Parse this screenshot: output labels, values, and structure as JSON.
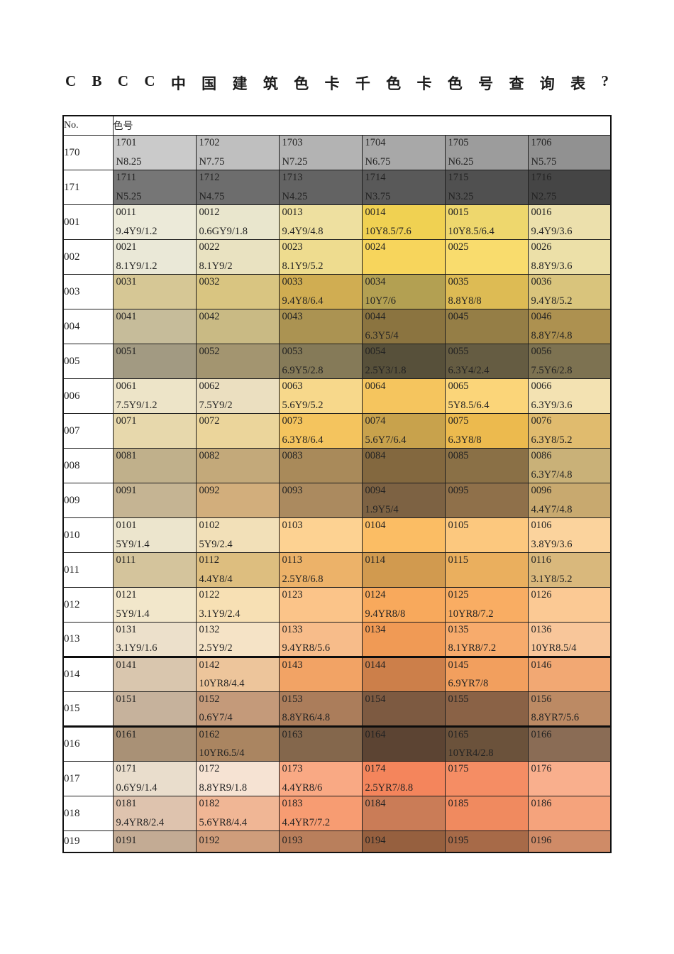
{
  "page": {
    "title_chars": "CBCC中国建筑色卡千色卡色号查询表?"
  },
  "table": {
    "header": {
      "no_label": "No.",
      "color_label": "色号"
    },
    "rows": [
      {
        "no": "170",
        "cells": [
          {
            "code": "1701",
            "munsell": "N8.25",
            "bg": "#cacaca"
          },
          {
            "code": "1702",
            "munsell": "N7.75",
            "bg": "#bfbfbf"
          },
          {
            "code": "1703",
            "munsell": "N7.25",
            "bg": "#b3b3b3"
          },
          {
            "code": "1704",
            "munsell": "N6.75",
            "bg": "#a8a8a8"
          },
          {
            "code": "1705",
            "munsell": "N6.25",
            "bg": "#9c9c9c"
          },
          {
            "code": "1706",
            "munsell": "N5.75",
            "bg": "#919191"
          }
        ]
      },
      {
        "no": "171",
        "cells": [
          {
            "code": "1711",
            "munsell": "N5.25",
            "bg": "#767676"
          },
          {
            "code": "1712",
            "munsell": "N4.75",
            "bg": "#6d6d6d"
          },
          {
            "code": "1713",
            "munsell": "N4.25",
            "bg": "#636363"
          },
          {
            "code": "1714",
            "munsell": "N3.75",
            "bg": "#595959"
          },
          {
            "code": "1715",
            "munsell": "N3.25",
            "bg": "#505050"
          },
          {
            "code": "1716",
            "munsell": "N2.75",
            "bg": "#454545"
          }
        ]
      },
      {
        "no": "001",
        "cells": [
          {
            "code": "0011",
            "munsell": "9.4Y9/1.2",
            "bg": "#ecead9"
          },
          {
            "code": "0012",
            "munsell": "0.6GY9/1.8",
            "bg": "#e9e6cd"
          },
          {
            "code": "0013",
            "munsell": "9.4Y9/4.8",
            "bg": "#eee0a0"
          },
          {
            "code": "0014",
            "munsell": "10Y8.5/7.6",
            "bg": "#f0d152"
          },
          {
            "code": "0015",
            "munsell": "10Y8.5/6.4",
            "bg": "#eed76d"
          },
          {
            "code": "0016",
            "munsell": "9.4Y9/3.6",
            "bg": "#ece0ac"
          }
        ]
      },
      {
        "no": "002",
        "cells": [
          {
            "code": "0021",
            "munsell": "8.1Y9/1.2",
            "bg": "#eae8d7"
          },
          {
            "code": "0022",
            "munsell": "8.1Y9/2",
            "bg": "#e9e2c1"
          },
          {
            "code": "0023",
            "munsell": "8.1Y9/5.2",
            "bg": "#eedc8f"
          },
          {
            "code": "0024",
            "munsell": "",
            "bg": "#f7d55c"
          },
          {
            "code": "0025",
            "munsell": "",
            "bg": "#f9dc6d"
          },
          {
            "code": "0026",
            "munsell": "8.8Y9/3.6",
            "bg": "#ece0a8"
          }
        ]
      },
      {
        "no": "003",
        "cells": [
          {
            "code": "0031",
            "munsell": "",
            "bg": "#d6c795"
          },
          {
            "code": "0032",
            "munsell": "",
            "bg": "#d9c581"
          },
          {
            "code": "0033",
            "munsell": "9.4Y8/6.4",
            "bg": "#d0ad52"
          },
          {
            "code": "0034",
            "munsell": "10Y7/6",
            "bg": "#b3a052"
          },
          {
            "code": "0035",
            "munsell": "8.8Y8/8",
            "bg": "#ddbb54"
          },
          {
            "code": "0036",
            "munsell": "9.4Y8/5.2",
            "bg": "#d9c47c"
          }
        ]
      },
      {
        "no": "004",
        "cells": [
          {
            "code": "0041",
            "munsell": "",
            "bg": "#c6bc9a"
          },
          {
            "code": "0042",
            "munsell": "",
            "bg": "#c9ba84"
          },
          {
            "code": "0043",
            "munsell": "",
            "bg": "#ab9352"
          },
          {
            "code": "0044",
            "munsell": "6.3Y5/4",
            "bg": "#8b7440"
          },
          {
            "code": "0045",
            "munsell": "",
            "bg": "#957e46"
          },
          {
            "code": "0046",
            "munsell": "8.8Y7/4.8",
            "bg": "#ad9150"
          }
        ]
      },
      {
        "no": "005",
        "cells": [
          {
            "code": "0051",
            "munsell": "",
            "bg": "#a29a82"
          },
          {
            "code": "0052",
            "munsell": "",
            "bg": "#a39570"
          },
          {
            "code": "0053",
            "munsell": "6.9Y5/2.8",
            "bg": "#857a58"
          },
          {
            "code": "0054",
            "munsell": "2.5Y3/1.8",
            "bg": "#57503a"
          },
          {
            "code": "0055",
            "munsell": "6.3Y4/2.4",
            "bg": "#655c42"
          },
          {
            "code": "0056",
            "munsell": "7.5Y6/2.8",
            "bg": "#7d7251"
          }
        ]
      },
      {
        "no": "006",
        "cells": [
          {
            "code": "0061",
            "munsell": "7.5Y9/1.2",
            "bg": "#ede4c8"
          },
          {
            "code": "0062",
            "munsell": "7.5Y9/2",
            "bg": "#ebdfc0"
          },
          {
            "code": "0063",
            "munsell": "5.6Y9/5.2",
            "bg": "#f7d88b"
          },
          {
            "code": "0064",
            "munsell": "",
            "bg": "#f5c55e"
          },
          {
            "code": "0065",
            "munsell": "5Y8.5/6.4",
            "bg": "#fbd579"
          },
          {
            "code": "0066",
            "munsell": "6.3Y9/3.6",
            "bg": "#f3e2b2"
          }
        ]
      },
      {
        "no": "007",
        "cells": [
          {
            "code": "0071",
            "munsell": "",
            "bg": "#e7d8ac"
          },
          {
            "code": "0072",
            "munsell": "",
            "bg": "#ebd59b"
          },
          {
            "code": "0073",
            "munsell": "6.3Y8/6.4",
            "bg": "#f4c45e"
          },
          {
            "code": "0074",
            "munsell": "5.6Y7/6.4",
            "bg": "#c8a24c"
          },
          {
            "code": "0075",
            "munsell": "6.3Y8/8",
            "bg": "#ecba4e"
          },
          {
            "code": "0076",
            "munsell": "6.3Y8/5.2",
            "bg": "#e0bb6e"
          }
        ]
      },
      {
        "no": "008",
        "cells": [
          {
            "code": "0081",
            "munsell": "",
            "bg": "#c0b08b"
          },
          {
            "code": "0082",
            "munsell": "",
            "bg": "#c3a97a"
          },
          {
            "code": "0083",
            "munsell": "",
            "bg": "#a98a5a"
          },
          {
            "code": "0084",
            "munsell": "",
            "bg": "#83683f"
          },
          {
            "code": "0085",
            "munsell": "",
            "bg": "#8a7046"
          },
          {
            "code": "0086",
            "munsell": "6.3Y7/4.8",
            "bg": "#c9b178"
          }
        ]
      },
      {
        "no": "009",
        "cells": [
          {
            "code": "0091",
            "munsell": "",
            "bg": "#c5b493"
          },
          {
            "code": "0092",
            "munsell": "",
            "bg": "#d2ae7c"
          },
          {
            "code": "0093",
            "munsell": "",
            "bg": "#ab8a5f"
          },
          {
            "code": "0094",
            "munsell": "1.9Y5/4",
            "bg": "#7d6243"
          },
          {
            "code": "0095",
            "munsell": "",
            "bg": "#8f704a"
          },
          {
            "code": "0096",
            "munsell": "4.4Y7/4.8",
            "bg": "#c8a96f"
          }
        ]
      },
      {
        "no": "010",
        "cells": [
          {
            "code": "0101",
            "munsell": "5Y9/1.4",
            "bg": "#ece5cd"
          },
          {
            "code": "0102",
            "munsell": "5Y9/2.4",
            "bg": "#f2e0b8"
          },
          {
            "code": "0103",
            "munsell": "",
            "bg": "#fdd292"
          },
          {
            "code": "0104",
            "munsell": "",
            "bg": "#fbbd64"
          },
          {
            "code": "0105",
            "munsell": "",
            "bg": "#fcc87e"
          },
          {
            "code": "0106",
            "munsell": "3.8Y9/3.6",
            "bg": "#fbd39d"
          }
        ]
      },
      {
        "no": "011",
        "cells": [
          {
            "code": "0111",
            "munsell": "",
            "bg": "#d4c49c"
          },
          {
            "code": "0112",
            "munsell": "4.4Y8/4",
            "bg": "#ddbe7f"
          },
          {
            "code": "0113",
            "munsell": "2.5Y8/6.8",
            "bg": "#ecb269"
          },
          {
            "code": "0114",
            "munsell": "",
            "bg": "#d19a4f"
          },
          {
            "code": "0115",
            "munsell": "",
            "bg": "#eaaf5e"
          },
          {
            "code": "0116",
            "munsell": "3.1Y8/5.2",
            "bg": "#d9b87c"
          }
        ]
      },
      {
        "no": "012",
        "cells": [
          {
            "code": "0121",
            "munsell": "5Y9/1.4",
            "bg": "#f2e7cb"
          },
          {
            "code": "0122",
            "munsell": "3.1Y9/2.4",
            "bg": "#f7e0b4"
          },
          {
            "code": "0123",
            "munsell": "",
            "bg": "#fbc489"
          },
          {
            "code": "0124",
            "munsell": "9.4YR8/8",
            "bg": "#f8a95c"
          },
          {
            "code": "0125",
            "munsell": "10YR8/7.2",
            "bg": "#f9ad63"
          },
          {
            "code": "0126",
            "munsell": "",
            "bg": "#fbc994"
          }
        ]
      },
      {
        "no": "013",
        "cells": [
          {
            "code": "0131",
            "munsell": "3.1Y9/1.6",
            "bg": "#ece0cb"
          },
          {
            "code": "0132",
            "munsell": "2.5Y9/2",
            "bg": "#f5e3c6"
          },
          {
            "code": "0133",
            "munsell": "9.4YR8/5.6",
            "bg": "#f7bc8a"
          },
          {
            "code": "0134",
            "munsell": "",
            "bg": "#f09a55"
          },
          {
            "code": "0135",
            "munsell": "8.1YR8/7.2",
            "bg": "#f7ab6c"
          },
          {
            "code": "0136",
            "munsell": "10YR8.5/4",
            "bg": "#f8c69a"
          }
        ]
      },
      {
        "no": "014",
        "separator_before": true,
        "cells": [
          {
            "code": "0141",
            "munsell": "",
            "bg": "#d9c6ae"
          },
          {
            "code": "0142",
            "munsell": "10YR8/4.4",
            "bg": "#edc59b"
          },
          {
            "code": "0143",
            "munsell": "",
            "bg": "#f2a365"
          },
          {
            "code": "0144",
            "munsell": "",
            "bg": "#cc7f4a"
          },
          {
            "code": "0145",
            "munsell": "6.9YR7/8",
            "bg": "#f29f5e"
          },
          {
            "code": "0146",
            "munsell": "",
            "bg": "#f2a873"
          }
        ]
      },
      {
        "no": "015",
        "cells": [
          {
            "code": "0151",
            "munsell": "",
            "bg": "#c6b29c"
          },
          {
            "code": "0152",
            "munsell": "0.6Y7/4",
            "bg": "#c49a7a"
          },
          {
            "code": "0153",
            "munsell": "8.8YR6/4.8",
            "bg": "#ab7d5b"
          },
          {
            "code": "0154",
            "munsell": "",
            "bg": "#7d5a41"
          },
          {
            "code": "0155",
            "munsell": "",
            "bg": "#8a6246"
          },
          {
            "code": "0156",
            "munsell": "8.8YR7/5.6",
            "bg": "#bc8a64"
          }
        ]
      },
      {
        "no": "016",
        "separator_before": true,
        "cells": [
          {
            "code": "0161",
            "munsell": "",
            "bg": "#a99176"
          },
          {
            "code": "0162",
            "munsell": "10YR6.5/4",
            "bg": "#aa8561"
          },
          {
            "code": "0163",
            "munsell": "",
            "bg": "#84674c"
          },
          {
            "code": "0164",
            "munsell": "",
            "bg": "#5c4433"
          },
          {
            "code": "0165",
            "munsell": "10YR4/2.8",
            "bg": "#6b523b"
          },
          {
            "code": "0166",
            "munsell": "",
            "bg": "#8a6c55"
          }
        ]
      },
      {
        "no": "017",
        "cells": [
          {
            "code": "0171",
            "munsell": "0.6Y9/1.4",
            "bg": "#e9ddcc"
          },
          {
            "code": "0172",
            "munsell": "8.8YR9/1.8",
            "bg": "#f6e3d3"
          },
          {
            "code": "0173",
            "munsell": "4.4YR8/6",
            "bg": "#f9a984"
          },
          {
            "code": "0174",
            "munsell": "2.5YR7/8.8",
            "bg": "#f4855c"
          },
          {
            "code": "0175",
            "munsell": "",
            "bg": "#f58d64"
          },
          {
            "code": "0176",
            "munsell": "",
            "bg": "#f9af8d"
          }
        ]
      },
      {
        "no": "018",
        "cells": [
          {
            "code": "0181",
            "munsell": "9.4YR8/2.4",
            "bg": "#dec3ae"
          },
          {
            "code": "0182",
            "munsell": "5.6YR8/4.4",
            "bg": "#f0b695"
          },
          {
            "code": "0183",
            "munsell": "4.4YR7/7.2",
            "bg": "#f79c72"
          },
          {
            "code": "0184",
            "munsell": "",
            "bg": "#ca7c57"
          },
          {
            "code": "0185",
            "munsell": "",
            "bg": "#f08a5f"
          },
          {
            "code": "0186",
            "munsell": "",
            "bg": "#f5a37c"
          }
        ]
      },
      {
        "no": "019",
        "short": true,
        "cells": [
          {
            "code": "0191",
            "munsell": "",
            "bg": "#c3ab94"
          },
          {
            "code": "0192",
            "munsell": "",
            "bg": "#cf9d7b"
          },
          {
            "code": "0193",
            "munsell": "",
            "bg": "#b97f5c"
          },
          {
            "code": "0194",
            "munsell": "",
            "bg": "#96603f"
          },
          {
            "code": "0195",
            "munsell": "",
            "bg": "#a76a48"
          },
          {
            "code": "0196",
            "munsell": "",
            "bg": "#cf8b67"
          }
        ]
      }
    ]
  }
}
